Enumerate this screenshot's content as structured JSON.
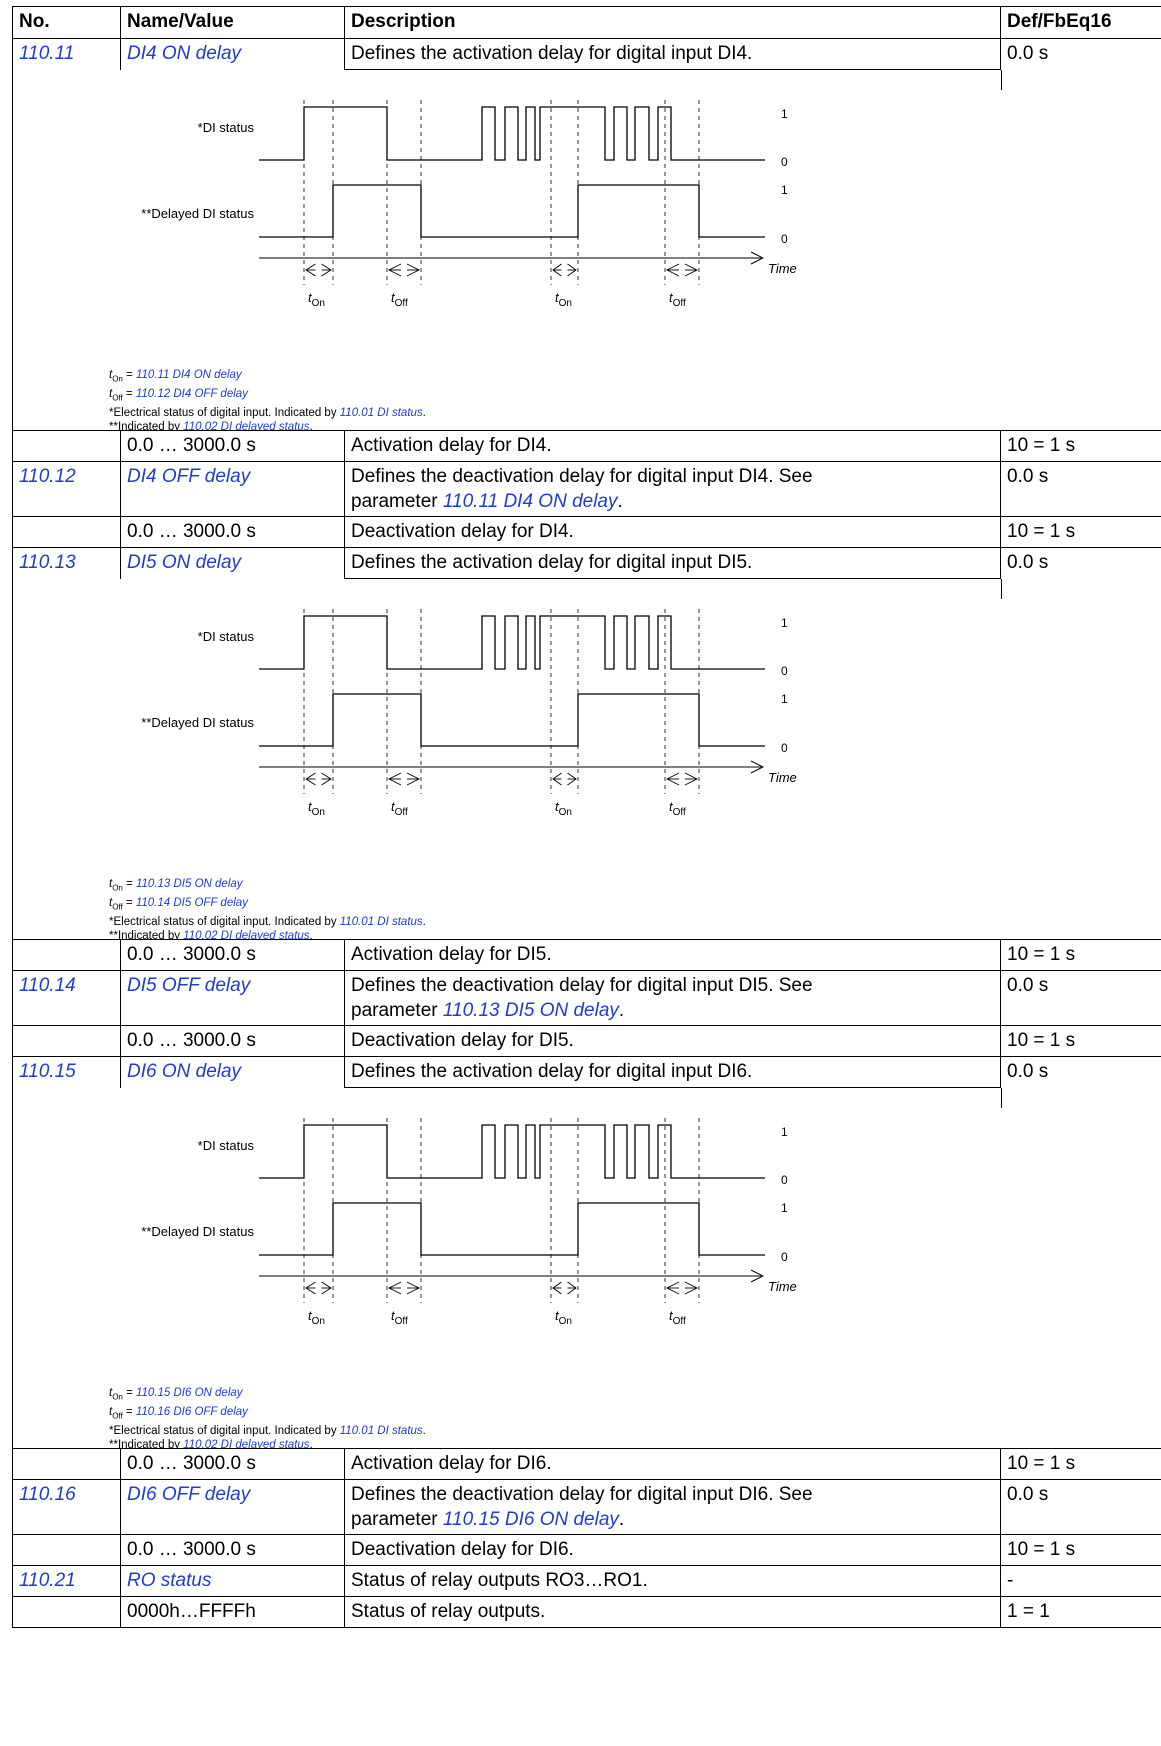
{
  "header": {
    "no": "No.",
    "name": "Name/Value",
    "description": "Description",
    "def": "Def/FbEq16"
  },
  "diagram_labels": {
    "di_status": "*DI status",
    "delayed_di_status": "**Delayed DI status",
    "level_one": "1",
    "level_zero": "0",
    "time": "Time",
    "t": "t",
    "on_sub": "On",
    "off_sub": "Off",
    "legend_eq": " = ",
    "legend_elec": "*Electrical status of digital input. Indicated by ",
    "legend_elec_link": "110.01 DI status",
    "legend_ind": "**Indicated by ",
    "legend_ind_link": "110.02 DI delayed status",
    "period": "."
  },
  "sections": [
    {
      "on": {
        "no": "110.11",
        "name": "DI4 ON delay",
        "desc": "Defines the activation delay for digital input DI4.",
        "def": "0.0 s"
      },
      "legend": {
        "on_link": "110.11 DI4 ON delay",
        "off_link": "110.12 DI4 OFF delay"
      },
      "on_range": {
        "name": "0.0 … 3000.0 s",
        "desc": "Activation delay for DI4.",
        "def": "10 = 1 s"
      },
      "off": {
        "no": "110.12",
        "name": "DI4 OFF delay",
        "desc1": "Defines the deactivation delay for digital input DI4. See",
        "desc2": "parameter ",
        "desc_link": "110.11 DI4 ON delay",
        "desc_end": ".",
        "def": "0.0 s"
      },
      "off_range": {
        "name": "0.0 … 3000.0 s",
        "desc": "Deactivation delay for DI4.",
        "def": "10 = 1 s"
      }
    },
    {
      "on": {
        "no": "110.13",
        "name": "DI5 ON delay",
        "desc": "Defines the activation delay for digital input DI5.",
        "def": "0.0 s"
      },
      "legend": {
        "on_link": "110.13 DI5 ON delay",
        "off_link": "110.14 DI5 OFF delay"
      },
      "on_range": {
        "name": "0.0 … 3000.0 s",
        "desc": "Activation delay for DI5.",
        "def": "10 = 1 s"
      },
      "off": {
        "no": "110.14",
        "name": "DI5 OFF delay",
        "desc1": "Defines the deactivation delay for digital input DI5. See",
        "desc2": "parameter ",
        "desc_link": "110.13 DI5 ON delay",
        "desc_end": ".",
        "def": "0.0 s"
      },
      "off_range": {
        "name": "0.0 … 3000.0 s",
        "desc": "Deactivation delay for DI5.",
        "def": "10 = 1 s"
      }
    },
    {
      "on": {
        "no": "110.15",
        "name": "DI6 ON delay",
        "desc": "Defines the activation delay for digital input DI6.",
        "def": "0.0 s"
      },
      "legend": {
        "on_link": "110.15 DI6 ON delay",
        "off_link": "110.16 DI6 OFF delay"
      },
      "on_range": {
        "name": "0.0 … 3000.0 s",
        "desc": "Activation delay for DI6.",
        "def": "10 = 1 s"
      },
      "off": {
        "no": "110.16",
        "name": "DI6 OFF delay",
        "desc1": "Defines the deactivation delay for digital input DI6. See",
        "desc2": "parameter ",
        "desc_link": "110.15 DI6 ON delay",
        "desc_end": ".",
        "def": "0.0 s"
      },
      "off_range": {
        "name": "0.0 … 3000.0 s",
        "desc": "Deactivation delay for DI6.",
        "def": "10 = 1 s"
      }
    }
  ],
  "ro": {
    "no": "110.21",
    "name": "RO status",
    "desc": "Status of relay outputs RO3…RO1.",
    "def": "-",
    "range_name": "0000h…FFFFh",
    "range_desc": "Status of relay outputs.",
    "range_def": "1 = 1"
  },
  "colors": {
    "link": "#1f3ccf",
    "lines": "#000000"
  }
}
